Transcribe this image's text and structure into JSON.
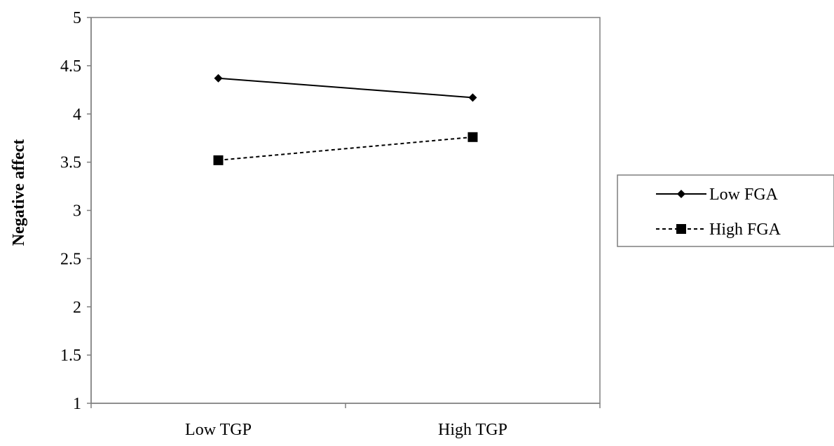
{
  "chart_data": {
    "type": "line",
    "title": "",
    "xlabel": "",
    "ylabel": "Negative affect",
    "categories": [
      "Low TGP",
      "High TGP"
    ],
    "ylim": [
      1,
      5
    ],
    "yticks": [
      "1",
      "1.5",
      "2",
      "2.5",
      "3",
      "3.5",
      "4",
      "4.5",
      "5"
    ],
    "grid": false,
    "legend_position": "right",
    "series": [
      {
        "name": "Low FGA",
        "values": [
          4.37,
          4.17
        ],
        "line_style": "solid",
        "marker": "diamond",
        "color": "#000000"
      },
      {
        "name": "High FGA",
        "values": [
          3.52,
          3.76
        ],
        "line_style": "dashed",
        "marker": "square",
        "color": "#000000"
      }
    ]
  }
}
